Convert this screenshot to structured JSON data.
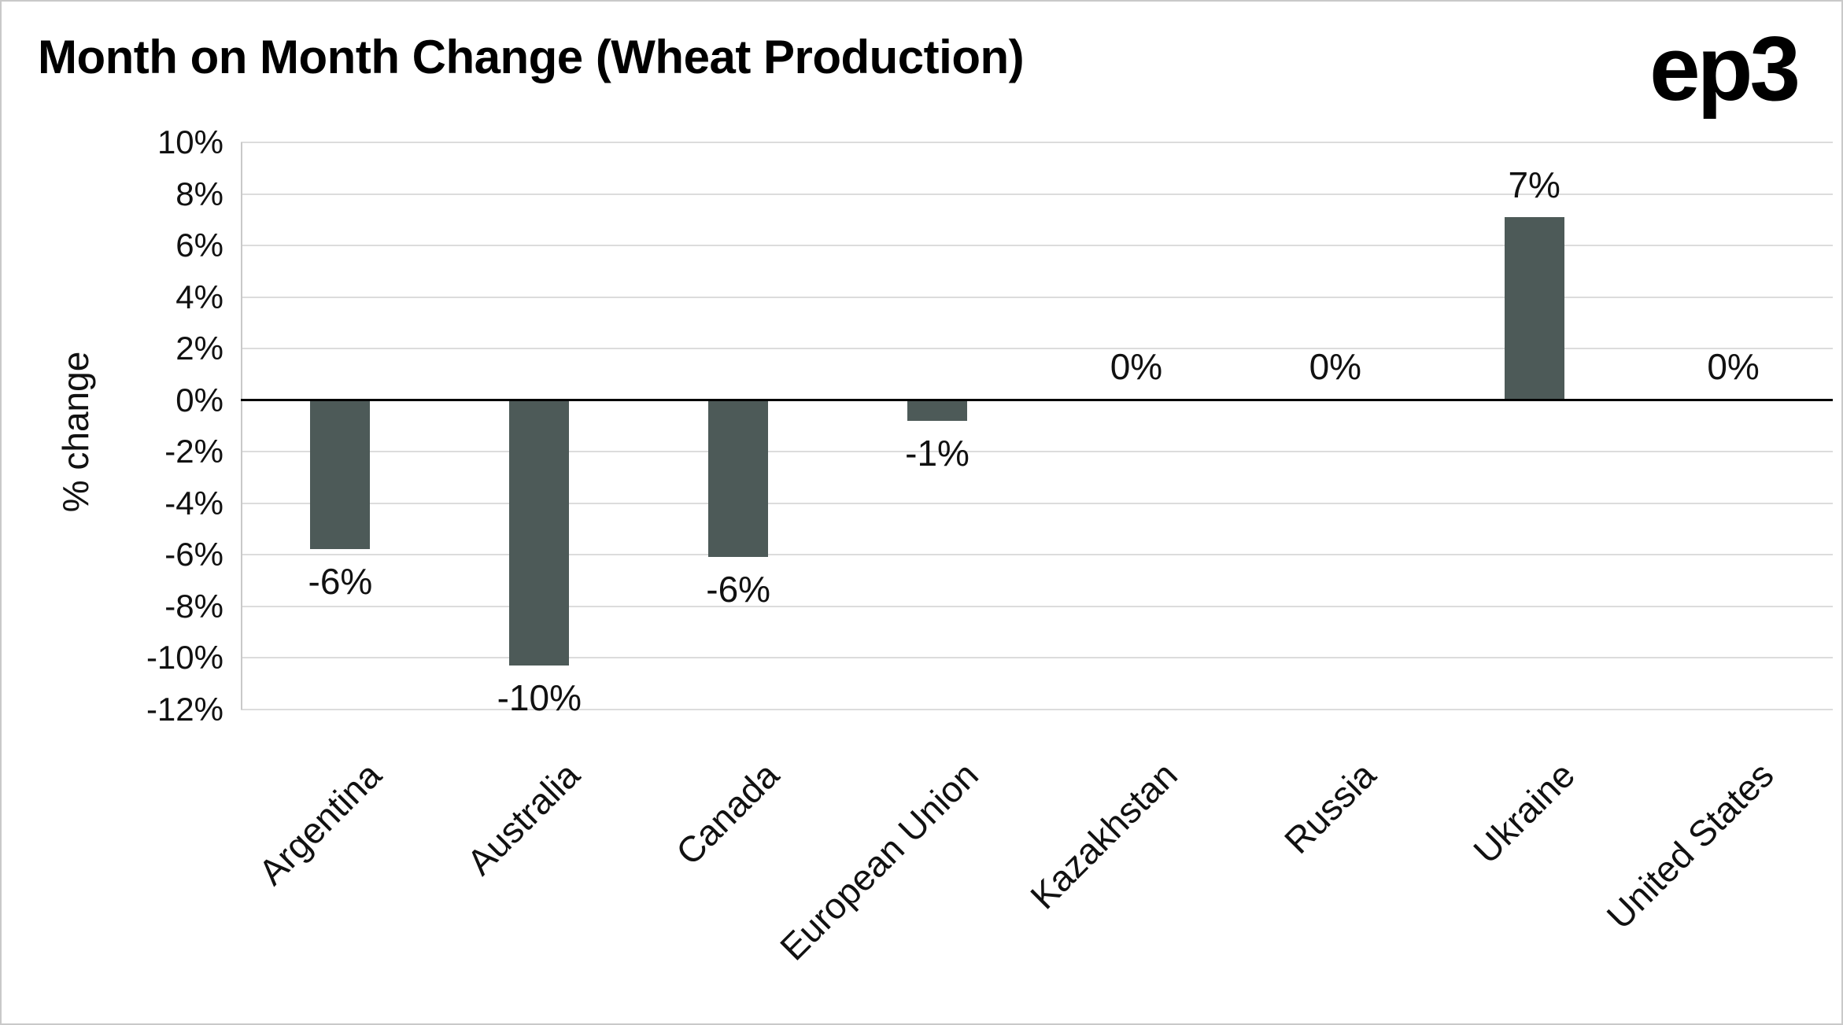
{
  "header": {
    "title": "Month on Month Change (Wheat Production)",
    "logo": "ep3"
  },
  "chart_data": {
    "type": "bar",
    "title": "Month on Month Change (Wheat Production)",
    "xlabel": "",
    "ylabel": "% change",
    "categories": [
      "Argentina",
      "Australia",
      "Canada",
      "European Union",
      "Kazakhstan",
      "Russia",
      "Ukraine",
      "United States"
    ],
    "values": [
      -6,
      -10,
      -6,
      -1,
      0,
      0,
      7,
      0
    ],
    "values_precise": [
      -5.8,
      -10.3,
      -6.1,
      -0.8,
      0,
      0,
      7.1,
      0
    ],
    "labels": [
      "-6%",
      "-10%",
      "-6%",
      "-1%",
      "0%",
      "0%",
      "7%",
      "0%"
    ],
    "yticks": [
      10,
      8,
      6,
      4,
      2,
      0,
      -2,
      -4,
      -6,
      -8,
      -10,
      -12
    ],
    "ytick_labels": [
      "10%",
      "8%",
      "6%",
      "4%",
      "2%",
      "0%",
      "-2%",
      "-4%",
      "-6%",
      "-8%",
      "-10%",
      "-12%"
    ],
    "ylim": [
      -12,
      10
    ],
    "grid": true,
    "legend": false,
    "bar_color": "#4d5a58",
    "gridline_color": "#dcdcdc",
    "axis_color": "#000000"
  }
}
